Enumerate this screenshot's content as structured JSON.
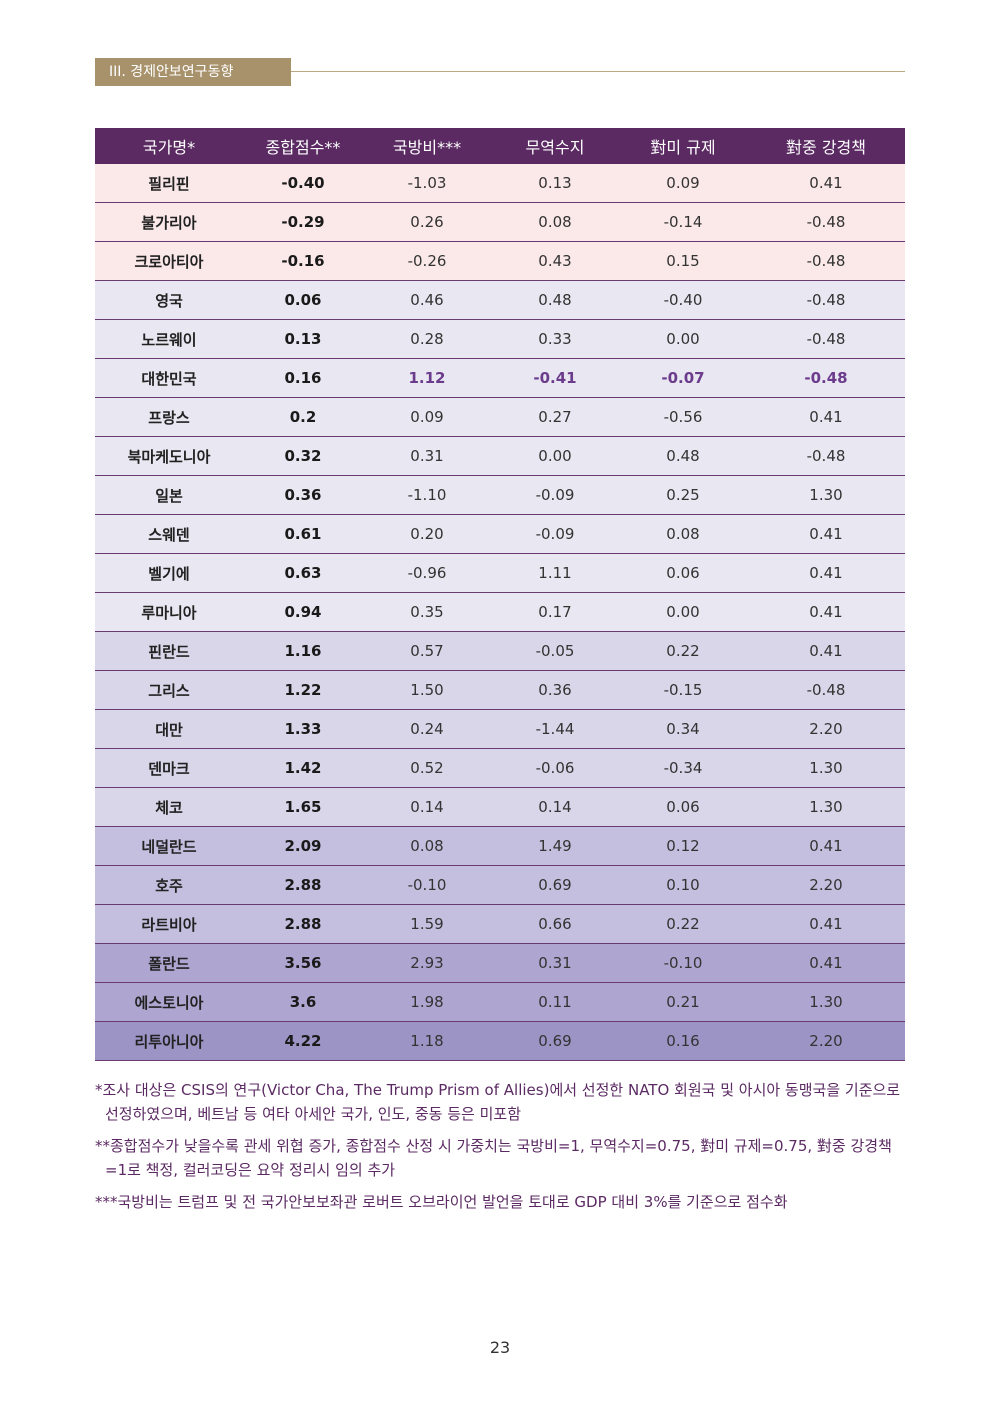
{
  "section": {
    "title": "III. 경제안보연구동향"
  },
  "table": {
    "headers": [
      "국가명*",
      "종합점수**",
      "국방비***",
      "무역수지",
      "對미 규제",
      "對중 강경책"
    ],
    "rows": [
      {
        "cells": [
          "필리핀",
          "-0.40",
          "-1.03",
          "0.13",
          "0.09",
          "0.41"
        ],
        "bg": "#fbe9e9"
      },
      {
        "cells": [
          "불가리아",
          "-0.29",
          "0.26",
          "0.08",
          "-0.14",
          "-0.48"
        ],
        "bg": "#fbe9e9"
      },
      {
        "cells": [
          "크로아티아",
          "-0.16",
          "-0.26",
          "0.43",
          "0.15",
          "-0.48"
        ],
        "bg": "#fbe9e9"
      },
      {
        "cells": [
          "영국",
          "0.06",
          "0.46",
          "0.48",
          "-0.40",
          "-0.48"
        ],
        "bg": "#e9e7f1"
      },
      {
        "cells": [
          "노르웨이",
          "0.13",
          "0.28",
          "0.33",
          "0.00",
          "-0.48"
        ],
        "bg": "#e9e7f1"
      },
      {
        "cells": [
          "대한민국",
          "0.16",
          "1.12",
          "-0.41",
          "-0.07",
          "-0.48"
        ],
        "bg": "#e9e7f1",
        "highlight": true
      },
      {
        "cells": [
          "프랑스",
          "0.2",
          "0.09",
          "0.27",
          "-0.56",
          "0.41"
        ],
        "bg": "#e9e7f1"
      },
      {
        "cells": [
          "북마케도니아",
          "0.32",
          "0.31",
          "0.00",
          "0.48",
          "-0.48"
        ],
        "bg": "#e9e7f1"
      },
      {
        "cells": [
          "일본",
          "0.36",
          "-1.10",
          "-0.09",
          "0.25",
          "1.30"
        ],
        "bg": "#e9e7f1"
      },
      {
        "cells": [
          "스웨덴",
          "0.61",
          "0.20",
          "-0.09",
          "0.08",
          "0.41"
        ],
        "bg": "#e9e7f1"
      },
      {
        "cells": [
          "벨기에",
          "0.63",
          "-0.96",
          "1.11",
          "0.06",
          "0.41"
        ],
        "bg": "#e9e7f1"
      },
      {
        "cells": [
          "루마니아",
          "0.94",
          "0.35",
          "0.17",
          "0.00",
          "0.41"
        ],
        "bg": "#e9e7f1"
      },
      {
        "cells": [
          "핀란드",
          "1.16",
          "0.57",
          "-0.05",
          "0.22",
          "0.41"
        ],
        "bg": "#d9d6e9"
      },
      {
        "cells": [
          "그리스",
          "1.22",
          "1.50",
          "0.36",
          "-0.15",
          "-0.48"
        ],
        "bg": "#d9d6e9"
      },
      {
        "cells": [
          "대만",
          "1.33",
          "0.24",
          "-1.44",
          "0.34",
          "2.20"
        ],
        "bg": "#d9d6e9"
      },
      {
        "cells": [
          "덴마크",
          "1.42",
          "0.52",
          "-0.06",
          "-0.34",
          "1.30"
        ],
        "bg": "#d9d6e9"
      },
      {
        "cells": [
          "체코",
          "1.65",
          "0.14",
          "0.14",
          "0.06",
          "1.30"
        ],
        "bg": "#d9d6e9"
      },
      {
        "cells": [
          "네덜란드",
          "2.09",
          "0.08",
          "1.49",
          "0.12",
          "0.41"
        ],
        "bg": "#c4bfdf"
      },
      {
        "cells": [
          "호주",
          "2.88",
          "-0.10",
          "0.69",
          "0.10",
          "2.20"
        ],
        "bg": "#c4bfdf"
      },
      {
        "cells": [
          "라트비아",
          "2.88",
          "1.59",
          "0.66",
          "0.22",
          "0.41"
        ],
        "bg": "#c4bfdf"
      },
      {
        "cells": [
          "폴란드",
          "3.56",
          "2.93",
          "0.31",
          "-0.10",
          "0.41"
        ],
        "bg": "#aea6d0"
      },
      {
        "cells": [
          "에스토니아",
          "3.6",
          "1.98",
          "0.11",
          "0.21",
          "1.30"
        ],
        "bg": "#aea6d0"
      },
      {
        "cells": [
          "리투아니아",
          "4.22",
          "1.18",
          "0.69",
          "0.16",
          "2.20"
        ],
        "bg": "#9d94c6"
      }
    ]
  },
  "notes": [
    "*조사 대상은 CSIS의 연구(Victor Cha, The Trump Prism of Allies)에서 선정한 NATO 회원국 및 아시아 동맹국을 기준으로 선정하였으며, 베트남 등 여타 아세안 국가, 인도, 중동 등은 미포함",
    "**종합점수가 낮을수록 관세 위협 증가, 종합점수 산정 시 가중치는 국방비=1, 무역수지=0.75, 對미 규제=0.75, 對중 강경책=1로 책정, 컬러코딩은 요약 정리시 임의 추가",
    "***국방비는 트럼프 및 전 국가안보보좌관 로버트 오브라이언 발언을 토대로 GDP 대비 3%를 기준으로 점수화"
  ],
  "page_number": "23"
}
